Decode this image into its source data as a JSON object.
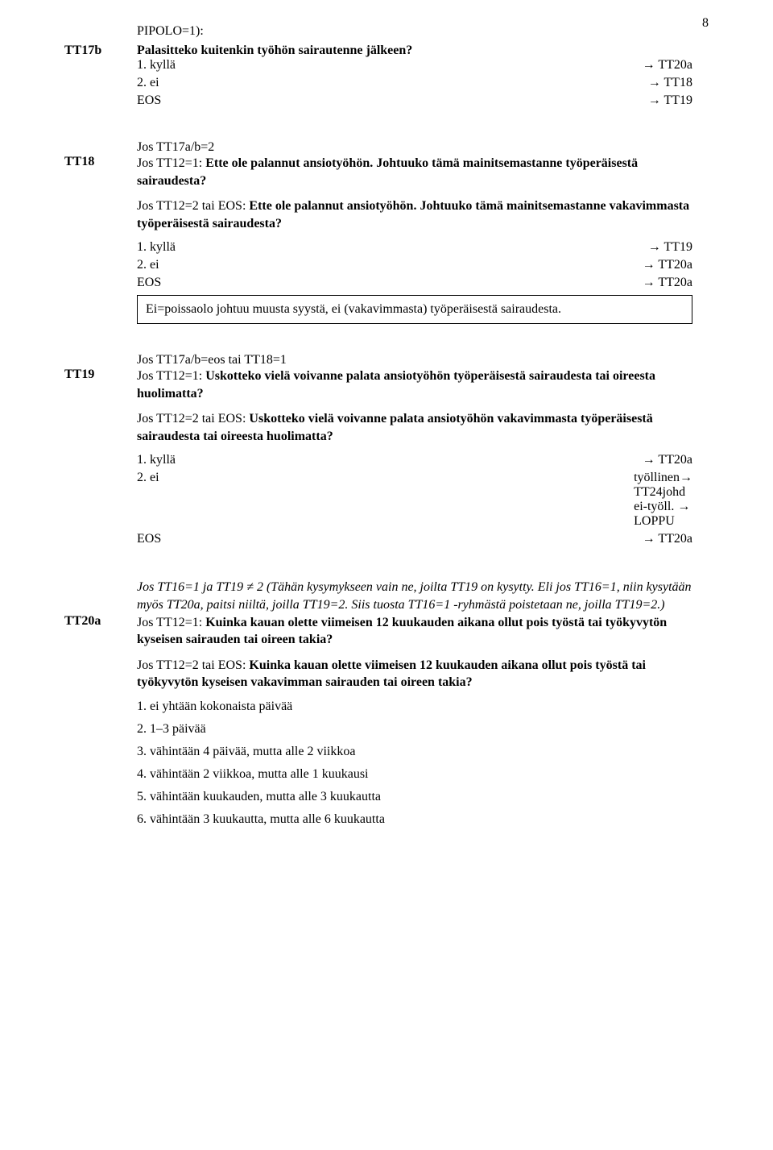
{
  "page_number": "8",
  "tt17b": {
    "pre_line": "PIPOLO=1):",
    "code": "TT17b",
    "question": "Palasitteko kuitenkin työhön sairautenne jälkeen?",
    "opt1": "1. kyllä",
    "goto1": "→ TT20a",
    "opt2": "2. ei",
    "goto2": "→ TT18",
    "opt3": "EOS",
    "goto3": "→ TT19"
  },
  "tt18": {
    "cond": "Jos TT17a/b=2",
    "code": "TT18",
    "q1a": "Jos TT12=1: ",
    "q1b": "Ette ole palannut ansiotyöhön. Johtuuko tämä mainitsemastanne työperäisestä sairaudesta?",
    "q2a": "Jos TT12=2 tai EOS: ",
    "q2b": "Ette ole palannut ansiotyöhön. Johtuuko tämä mainitsemastanne vakavimmasta työperäisestä sairaudesta?",
    "opt1": "1. kyllä",
    "goto1": "→ TT19",
    "opt2": "2. ei",
    "goto2": "→ TT20a",
    "opt3": "EOS",
    "goto3": "→ TT20a",
    "note": "Ei=poissaolo johtuu muusta syystä, ei (vakavimmasta) työperäisestä sairaudesta."
  },
  "tt19": {
    "cond": "Jos TT17a/b=eos tai TT18=1",
    "code": "TT19",
    "q1a": "Jos TT12=1: ",
    "q1b": "Uskotteko vielä voivanne palata ansiotyöhön työperäisestä sairaudesta tai oireesta huolimatta?",
    "q2a": "Jos TT12=2 tai EOS: ",
    "q2b": "Uskotteko vielä voivanne palata ansiotyöhön vakavimmasta työperäisestä sairaudesta tai oireesta huolimatta?",
    "opt1": "1. kyllä",
    "goto1": "→ TT20a",
    "opt2": "2. ei",
    "goto2a": "työllinen→",
    "goto2b": "TT24johd",
    "goto2c": "ei-työll. →",
    "goto2d": "LOPPU",
    "opt3": "EOS",
    "goto3": "→ TT20a"
  },
  "tt20a": {
    "cond": "Jos TT16=1 ja TT19 ≠ 2 (Tähän kysymykseen vain ne, joilta TT19 on kysytty. Eli jos TT16=1, niin kysytään myös TT20a, paitsi niiltä, joilla TT19=2. Siis tuosta TT16=1 -ryhmästä poistetaan ne, joilla TT19=2.)",
    "code": "TT20a",
    "q1a": "Jos TT12=1: ",
    "q1b": "Kuinka kauan olette viimeisen 12 kuukauden aikana ollut pois työstä tai työkyvytön kyseisen sairauden tai oireen takia?",
    "q2a": "Jos TT12=2 tai EOS: ",
    "q2b": "Kuinka kauan olette viimeisen 12 kuukauden aikana ollut pois työstä tai työkyvytön kyseisen vakavimman sairauden tai oireen takia?",
    "opt1": "1. ei yhtään kokonaista päivää",
    "opt2": "2. 1–3 päivää",
    "opt3": "3. vähintään 4 päivää, mutta alle 2 viikkoa",
    "opt4": "4. vähintään 2 viikkoa, mutta alle 1 kuukausi",
    "opt5": "5. vähintään kuukauden, mutta alle 3 kuukautta",
    "opt6": "6. vähintään 3 kuukautta, mutta alle 6 kuukautta"
  }
}
